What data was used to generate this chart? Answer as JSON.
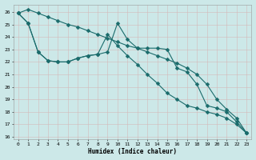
{
  "xlabel": "Humidex (Indice chaleur)",
  "bg_color": "#cce8e8",
  "grid_color": "#d4b8b8",
  "line_color": "#1a6b6b",
  "xlim": [
    -0.5,
    23.5
  ],
  "ylim": [
    15.8,
    26.6
  ],
  "yticks": [
    16,
    17,
    18,
    19,
    20,
    21,
    22,
    23,
    24,
    25,
    26
  ],
  "xticks": [
    0,
    1,
    2,
    3,
    4,
    5,
    6,
    7,
    8,
    9,
    10,
    11,
    12,
    13,
    14,
    15,
    16,
    17,
    18,
    19,
    20,
    21,
    22,
    23
  ],
  "line1_x": [
    0,
    1,
    2,
    3,
    4,
    5,
    6,
    7,
    8,
    9,
    10,
    11,
    12,
    13,
    14,
    15,
    16,
    17,
    18,
    19,
    20,
    21,
    22,
    23
  ],
  "line1_y": [
    25.9,
    26.2,
    25.9,
    25.6,
    25.3,
    25.0,
    24.8,
    24.5,
    24.2,
    23.9,
    23.6,
    23.3,
    23.1,
    22.8,
    22.5,
    22.2,
    21.9,
    21.5,
    21.0,
    20.2,
    19.0,
    18.2,
    17.5,
    16.3
  ],
  "line2_x": [
    0,
    1,
    2,
    3,
    4,
    5,
    6,
    7,
    8,
    9,
    10,
    11,
    12,
    13,
    14,
    15,
    16,
    17,
    18,
    19,
    20,
    21,
    22,
    23
  ],
  "line2_y": [
    25.9,
    25.1,
    22.8,
    22.1,
    22.0,
    22.0,
    22.3,
    22.5,
    22.6,
    22.8,
    25.1,
    23.8,
    23.1,
    23.1,
    23.1,
    23.0,
    21.5,
    21.2,
    20.2,
    18.5,
    18.3,
    18.0,
    17.2,
    16.3
  ],
  "line3_x": [
    0,
    1,
    2,
    3,
    4,
    5,
    6,
    7,
    8,
    9,
    10,
    11,
    12,
    13,
    14,
    15,
    16,
    17,
    18,
    19,
    20,
    21,
    22,
    23
  ],
  "line3_y": [
    25.9,
    25.1,
    22.8,
    22.1,
    22.0,
    22.0,
    22.3,
    22.5,
    22.6,
    24.2,
    23.3,
    22.5,
    21.8,
    21.0,
    20.3,
    19.5,
    19.0,
    18.5,
    18.3,
    18.0,
    17.8,
    17.5,
    17.0,
    16.3
  ]
}
